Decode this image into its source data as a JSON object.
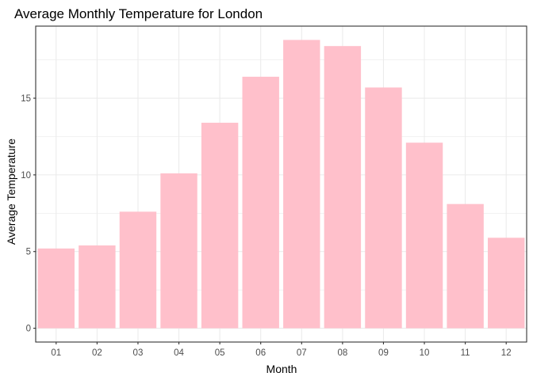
{
  "chart_data": {
    "type": "bar",
    "title": "Average Monthly Temperature for London",
    "xlabel": "Month",
    "ylabel": "Average Temperature",
    "categories": [
      "01",
      "02",
      "03",
      "04",
      "05",
      "06",
      "07",
      "08",
      "09",
      "10",
      "11",
      "12"
    ],
    "values": [
      5.2,
      5.4,
      7.6,
      10.1,
      13.4,
      16.4,
      18.8,
      18.4,
      15.7,
      12.1,
      8.1,
      5.9
    ],
    "ylim": [
      -0.9,
      19.7
    ],
    "yticks": [
      0,
      5,
      10,
      15
    ],
    "ytick_labels": [
      "0",
      "5",
      "10",
      "15"
    ],
    "grid": true,
    "bar_color": "#FFC0CB",
    "grid_color": "#EBEBEB",
    "panel_border_color": "#333333"
  }
}
